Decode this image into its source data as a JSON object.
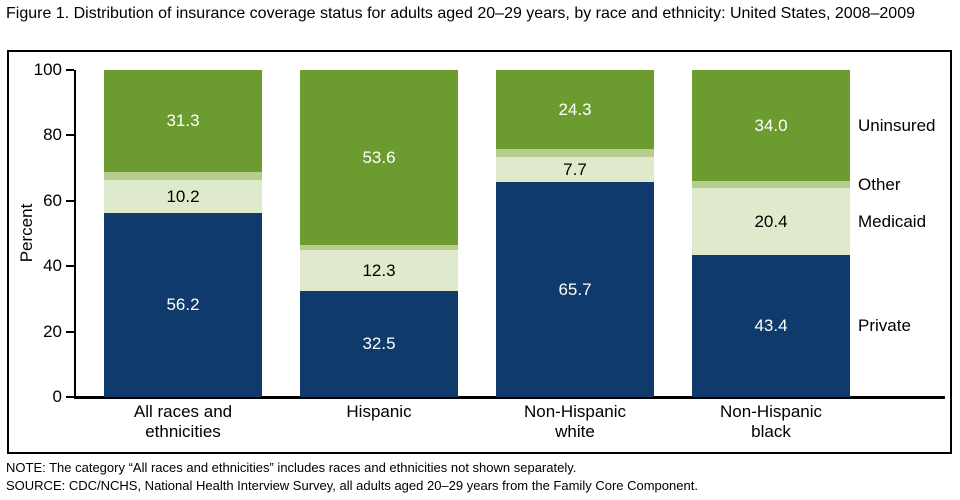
{
  "title": "Figure 1. Distribution of insurance coverage status for adults aged 20–29 years, by race and ethnicity: United States, 2008–2009",
  "chart_data": {
    "type": "bar",
    "stacked": true,
    "categories": [
      "All races and\nethnicities",
      "Hispanic",
      "Non-Hispanic\nwhite",
      "Non-Hispanic\nblack"
    ],
    "series": [
      {
        "name": "Private",
        "values": [
          56.2,
          32.5,
          65.7,
          43.4
        ],
        "color": "#0F3A6B",
        "label_color": "#FFFFFF",
        "show_labels": true
      },
      {
        "name": "Medicaid",
        "values": [
          10.2,
          12.3,
          7.7,
          20.4
        ],
        "color": "#DFEACD",
        "label_color": "#000000",
        "show_labels": true
      },
      {
        "name": "Other",
        "values": [
          2.3,
          1.6,
          2.3,
          2.2
        ],
        "color": "#B7CC8F",
        "label_color": "#000000",
        "show_labels": false
      },
      {
        "name": "Uninsured",
        "values": [
          31.3,
          53.6,
          24.3,
          34.0
        ],
        "color": "#6C9C30",
        "label_color": "#FFFFFF",
        "show_labels": true
      }
    ],
    "ylabel": "Percent",
    "ylim": [
      0,
      100
    ],
    "yticks": [
      0,
      20,
      40,
      60,
      80,
      100
    ],
    "legend_position": "right",
    "grid": false
  },
  "notes": {
    "note": "NOTE: The category “All races and ethnicities” includes races and ethnicities not shown separately.",
    "source": "SOURCE: CDC/NCHS, National Health Interview Survey, all adults aged 20–29 years from the Family Core Component."
  }
}
